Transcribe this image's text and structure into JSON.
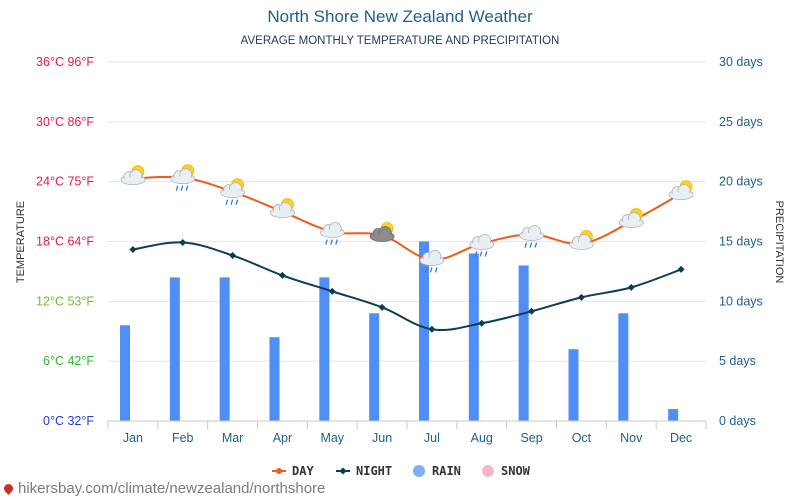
{
  "header": {
    "title": "North Shore New Zealand Weather",
    "subtitle": "AVERAGE MONTHLY TEMPERATURE AND PRECIPITATION"
  },
  "watermark": {
    "text": "hikersbay.com/climate/newzealand/northshore"
  },
  "colors": {
    "day": "#f05a1a",
    "night": "#0d3c55",
    "rain": "#4f8ff5",
    "snow": "#f7b6c8",
    "precip_axis": "#1f5f8b",
    "temp_axis_colors": [
      "#1f3bd6",
      "#2eb82e",
      "#6fbf2a",
      "#e6194b",
      "#e6194b",
      "#e6194b",
      "#e6194b"
    ]
  },
  "chart_data": {
    "type": "line",
    "categories": [
      "Jan",
      "Feb",
      "Mar",
      "Apr",
      "May",
      "Jun",
      "Jul",
      "Aug",
      "Sep",
      "Oct",
      "Nov",
      "Dec"
    ],
    "series": [
      {
        "name": "DAY",
        "type": "line",
        "axis": "temperature",
        "values": [
          24.3,
          24.4,
          23.0,
          21.0,
          19.0,
          18.6,
          16.2,
          17.8,
          18.7,
          17.8,
          20.0,
          22.8
        ]
      },
      {
        "name": "NIGHT",
        "type": "line",
        "axis": "temperature",
        "values": [
          17.2,
          17.9,
          16.6,
          14.6,
          13.0,
          11.4,
          9.2,
          9.8,
          11.0,
          12.4,
          13.4,
          15.2
        ]
      },
      {
        "name": "RAIN",
        "type": "bar",
        "axis": "precipitation",
        "values": [
          8,
          12,
          12,
          7,
          12,
          9,
          15,
          14,
          13,
          6,
          9,
          1
        ]
      },
      {
        "name": "SNOW",
        "type": "bar",
        "axis": "precipitation",
        "values": [
          0,
          0,
          0,
          0,
          0,
          0,
          0,
          0,
          0,
          0,
          0,
          0
        ]
      }
    ],
    "weather_icons": [
      "sun-cloud-icon",
      "rain-sun-cloud-icon",
      "rain-sun-cloud-icon",
      "sun-cloud-icon",
      "rain-cloud-icon",
      "sun-dark-cloud-icon",
      "rain-cloud-icon",
      "rain-cloud-icon",
      "rain-cloud-icon",
      "sun-cloud-icon",
      "sun-cloud-icon",
      "sun-cloud-icon"
    ],
    "y_left": {
      "label": "TEMPERATURE",
      "range": [
        0,
        36
      ],
      "ticks": [
        "0°C 32°F",
        "6°C 42°F",
        "12°C 53°F",
        "18°C 64°F",
        "24°C 75°F",
        "30°C 86°F",
        "36°C 96°F"
      ]
    },
    "y_right": {
      "label": "PRECIPITATION",
      "range": [
        0,
        30
      ],
      "ticks": [
        "0 days",
        "5 days",
        "10 days",
        "15 days",
        "20 days",
        "25 days",
        "30 days"
      ]
    },
    "legend": {
      "position": "bottom",
      "items": [
        "DAY",
        "NIGHT",
        "RAIN",
        "SNOW"
      ]
    },
    "grid": true
  }
}
